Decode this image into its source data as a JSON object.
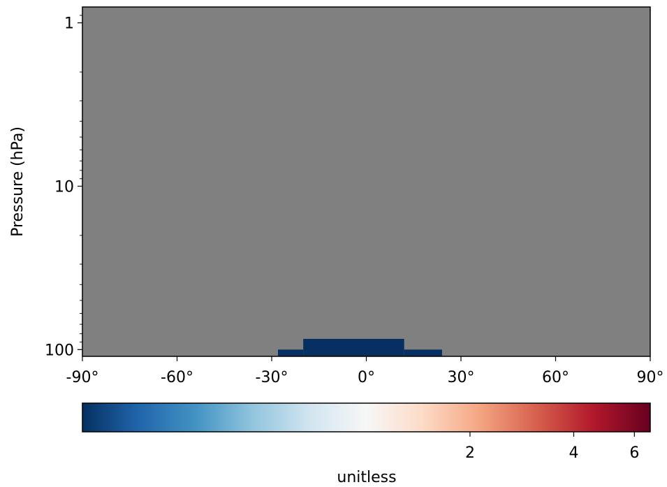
{
  "chart_data": {
    "type": "heatmap",
    "title": "",
    "xlabel": "",
    "ylabel": "Pressure (hPa)",
    "x_ticks": [
      {
        "value": -90,
        "label": "-90°"
      },
      {
        "value": -60,
        "label": "-60°"
      },
      {
        "value": -30,
        "label": "-30°"
      },
      {
        "value": 0,
        "label": "0°"
      },
      {
        "value": 30,
        "label": "30°"
      },
      {
        "value": 60,
        "label": "60°"
      },
      {
        "value": 90,
        "label": "90°"
      }
    ],
    "xlim": [
      -90,
      90
    ],
    "y_scale": "log",
    "y_inverted": true,
    "y_ticks": [
      {
        "value": 1,
        "label": "1"
      },
      {
        "value": 10,
        "label": "10"
      },
      {
        "value": 100,
        "label": "100"
      }
    ],
    "ylim": [
      110,
      0.8
    ],
    "background_color": "#808080",
    "cells": [
      {
        "lat": [
          -28,
          -20
        ],
        "p": [
          100,
          110
        ],
        "color": "#053061"
      },
      {
        "lat": [
          -20,
          12
        ],
        "p": [
          86,
          110
        ],
        "color": "#053061"
      },
      {
        "lat": [
          12,
          24
        ],
        "p": [
          100,
          110
        ],
        "color": "#053061"
      }
    ],
    "colorbar": {
      "orientation": "horizontal",
      "label": "unitless",
      "colormap": "RdBu_r",
      "colors": [
        "#053061",
        "#2166ac",
        "#4393c3",
        "#92c5de",
        "#d1e5f0",
        "#f7f7f7",
        "#fddbc7",
        "#f4a582",
        "#d6604d",
        "#b2182b",
        "#67001f"
      ],
      "ticks": [
        {
          "value": 2,
          "label": "2"
        },
        {
          "value": 4,
          "label": "4"
        },
        {
          "value": 6,
          "label": "6"
        }
      ],
      "scale": "log",
      "range": [
        0.15,
        6.67
      ]
    }
  }
}
